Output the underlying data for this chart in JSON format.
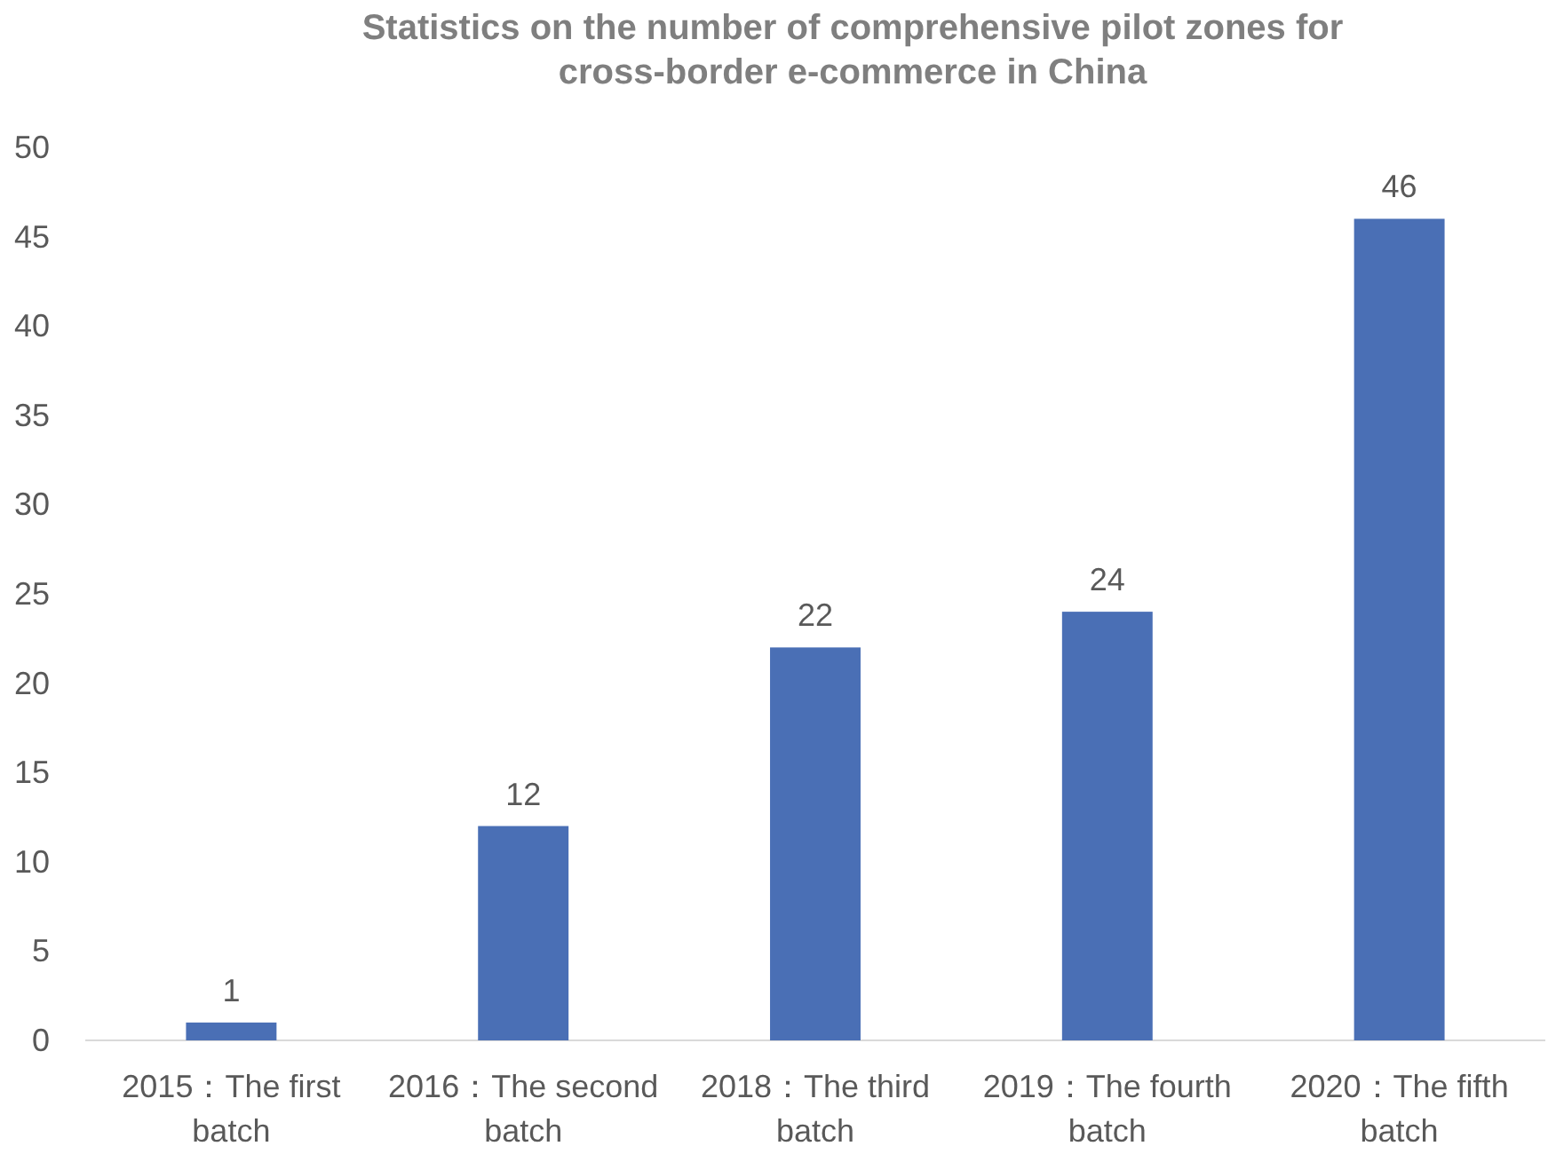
{
  "chart_data": {
    "type": "bar",
    "title": "Statistics on the number of comprehensive pilot zones for cross-border e-commerce in China",
    "categories": [
      "2015：The first batch",
      "2016：The second batch",
      "2018：The third batch",
      "2019：The fourth batch",
      "2020：The fifth batch"
    ],
    "values": [
      1,
      12,
      22,
      24,
      46
    ],
    "color": "#4a6fb5",
    "ylim": [
      0,
      50
    ],
    "yticks": [
      0,
      5,
      10,
      15,
      20,
      25,
      30,
      35,
      40,
      45,
      50
    ],
    "data_labels": true
  }
}
